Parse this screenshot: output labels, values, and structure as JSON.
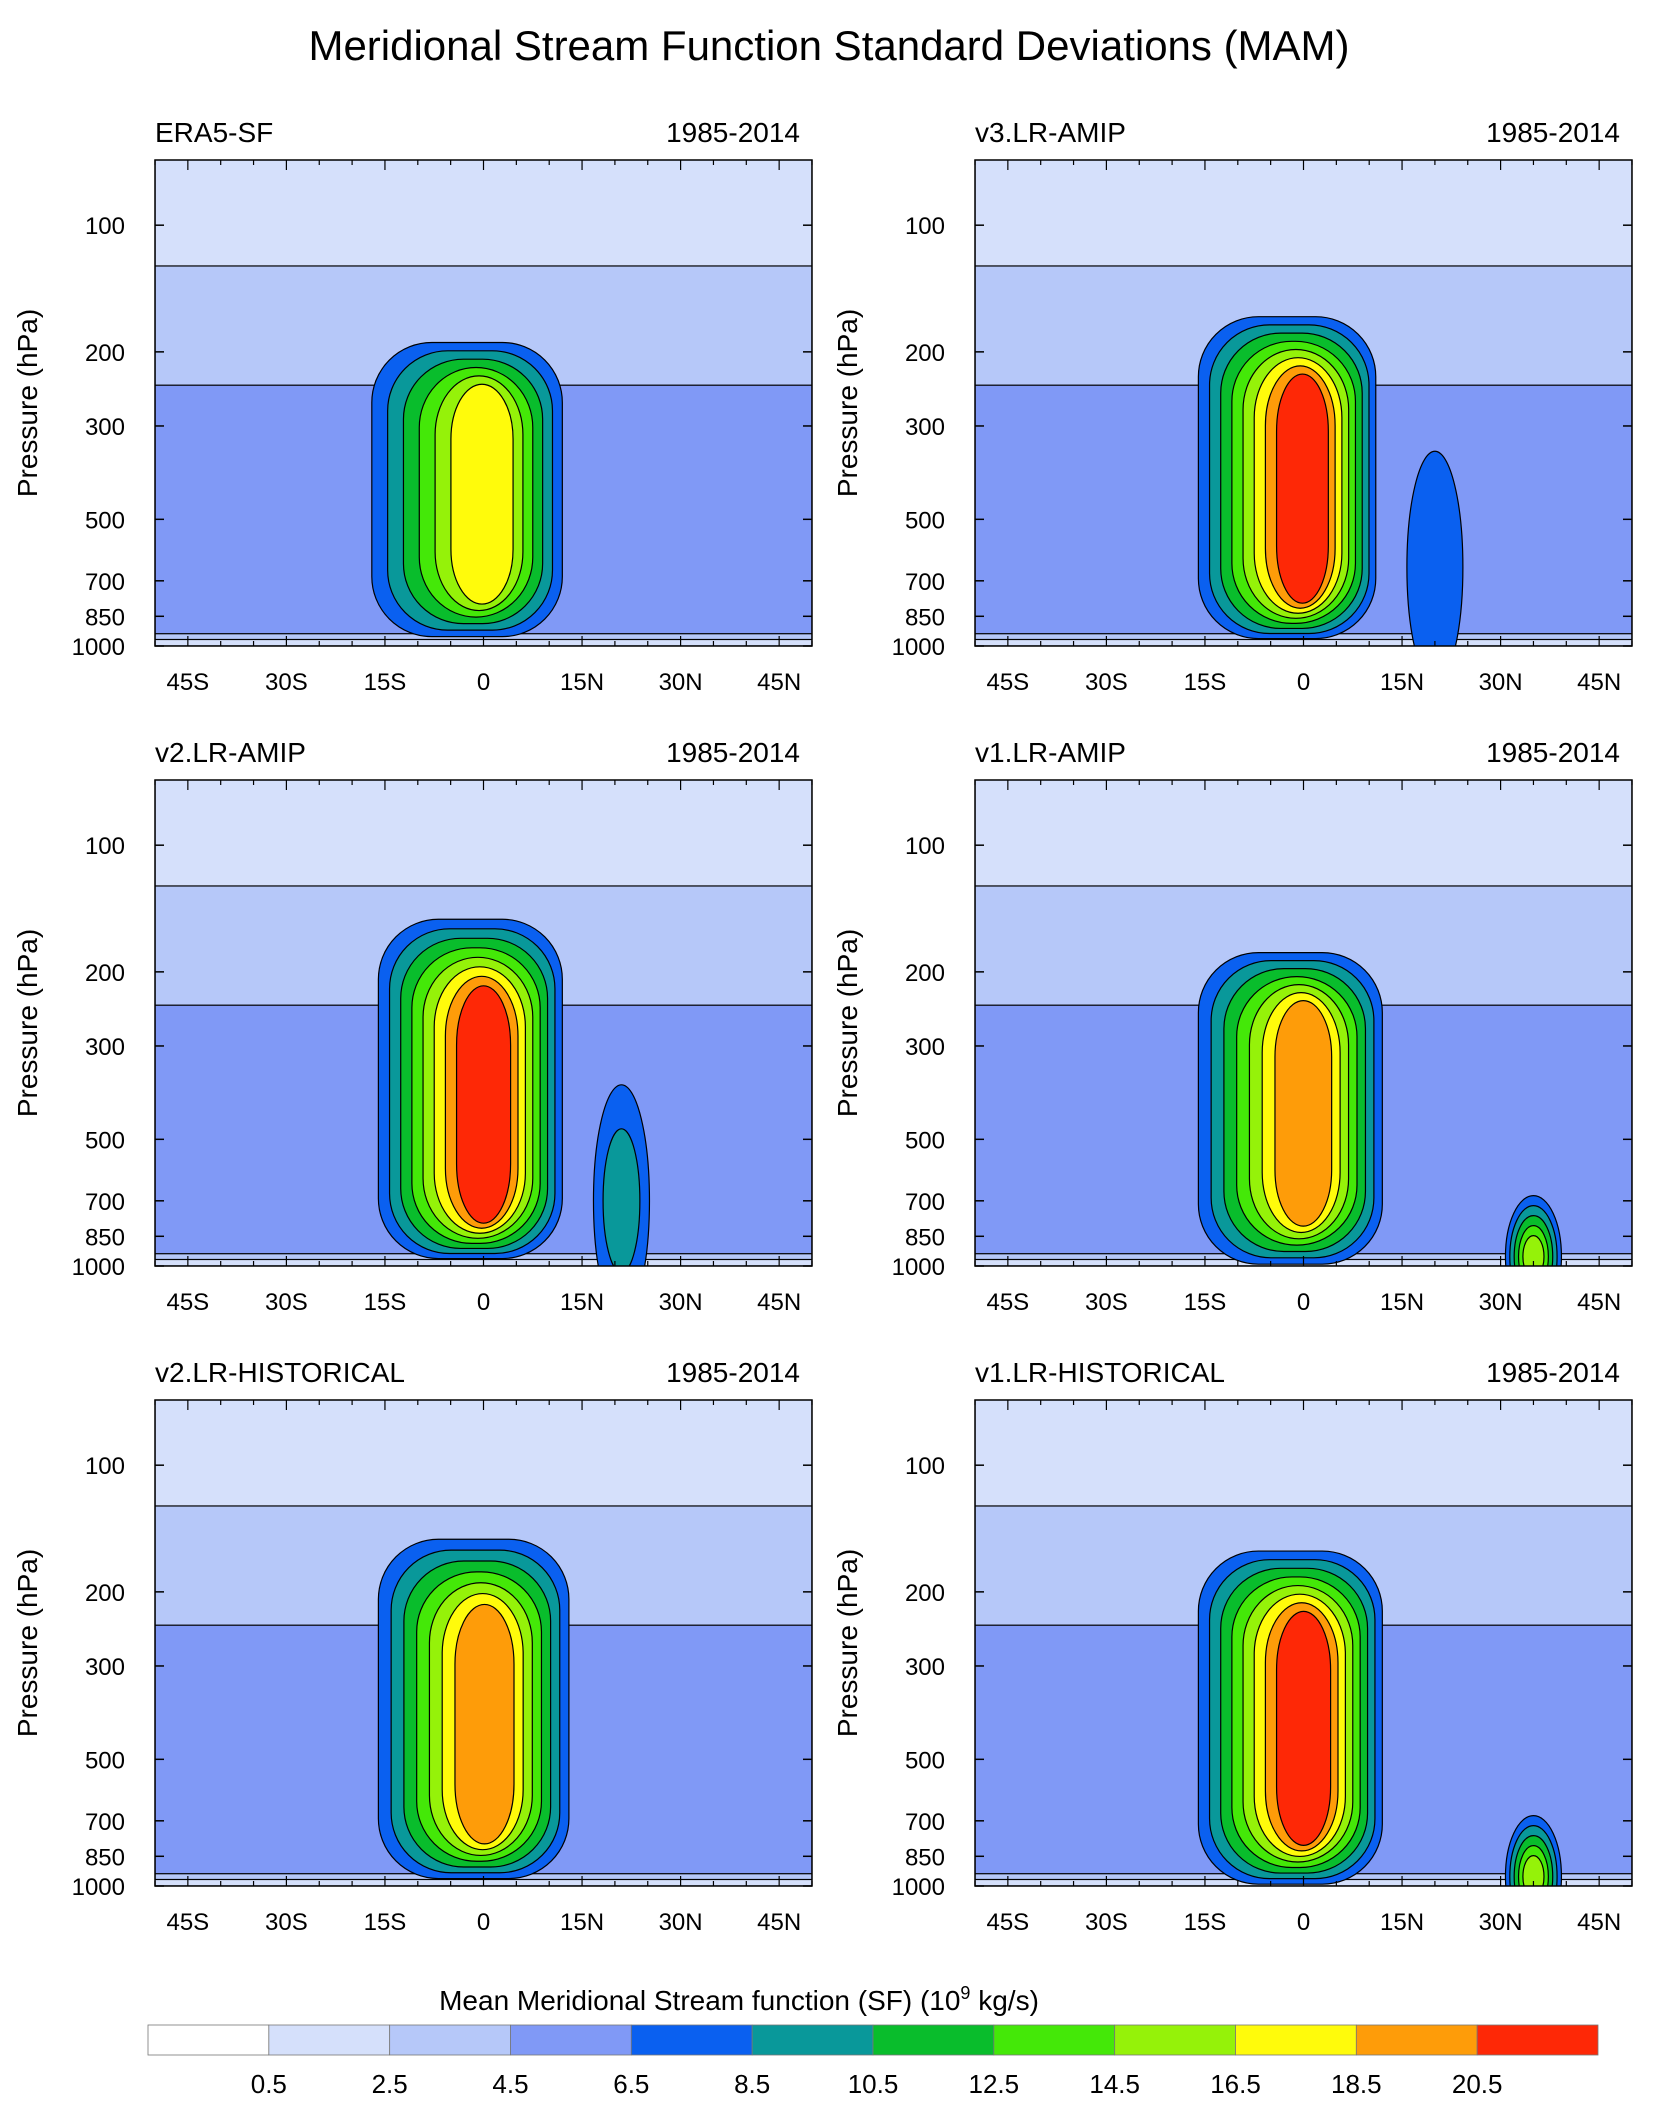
{
  "figure": {
    "title": "Meridional Stream Function Standard Deviations (MAM)"
  },
  "chart_data": [
    {
      "type": "contour",
      "panel": "ERA5-SF",
      "period": "1985-2014",
      "xlabel": "",
      "ylabel": "Pressure (hPa)",
      "xlim": [
        -50,
        50
      ],
      "ylim": [
        1000,
        70
      ],
      "xticks": [
        "45S",
        "30S",
        "15S",
        "0",
        "15N",
        "30N",
        "45N"
      ],
      "xtick_values": [
        -45,
        -30,
        -15,
        0,
        15,
        30,
        45
      ],
      "yticks": [
        100,
        200,
        300,
        500,
        700,
        850,
        1000
      ],
      "max_level": 16.5,
      "core": {
        "lat_range": [
          -17,
          12
        ],
        "top_hpa": 190,
        "bottom_hpa": 950
      },
      "features": []
    },
    {
      "type": "contour",
      "panel": "v3.LR-AMIP",
      "period": "1985-2014",
      "xlabel": "",
      "ylabel": "Pressure (hPa)",
      "xlim": [
        -50,
        50
      ],
      "ylim": [
        1000,
        70
      ],
      "xticks": [
        "45S",
        "30S",
        "15S",
        "0",
        "15N",
        "30N",
        "45N"
      ],
      "xtick_values": [
        -45,
        -30,
        -15,
        0,
        15,
        30,
        45
      ],
      "yticks": [
        100,
        200,
        300,
        500,
        700,
        850,
        1000
      ],
      "max_level": 20.5,
      "core": {
        "lat_range": [
          -16,
          11
        ],
        "top_hpa": 165,
        "bottom_hpa": 960
      },
      "features": [
        {
          "lat": 20,
          "pressure": 650,
          "level": 6.5
        }
      ]
    },
    {
      "type": "contour",
      "panel": "v2.LR-AMIP",
      "period": "1985-2014",
      "xlabel": "",
      "ylabel": "Pressure (hPa)",
      "xlim": [
        -50,
        50
      ],
      "ylim": [
        1000,
        70
      ],
      "xticks": [
        "45S",
        "30S",
        "15S",
        "0",
        "15N",
        "30N",
        "45N"
      ],
      "xtick_values": [
        -45,
        -30,
        -15,
        0,
        15,
        30,
        45
      ],
      "yticks": [
        100,
        200,
        300,
        500,
        700,
        850,
        1000
      ],
      "max_level": 20.5,
      "core": {
        "lat_range": [
          -16,
          12
        ],
        "top_hpa": 150,
        "bottom_hpa": 960
      },
      "features": [
        {
          "lat": 21,
          "pressure": 700,
          "level": 8.5
        }
      ]
    },
    {
      "type": "contour",
      "panel": "v1.LR-AMIP",
      "period": "1985-2014",
      "xlabel": "",
      "ylabel": "Pressure (hPa)",
      "xlim": [
        -50,
        50
      ],
      "ylim": [
        1000,
        70
      ],
      "xticks": [
        "45S",
        "30S",
        "15S",
        "0",
        "15N",
        "30N",
        "45N"
      ],
      "xtick_values": [
        -45,
        -30,
        -15,
        0,
        15,
        30,
        45
      ],
      "yticks": [
        100,
        200,
        300,
        500,
        700,
        850,
        1000
      ],
      "max_level": 18.5,
      "core": {
        "lat_range": [
          -16,
          12
        ],
        "top_hpa": 180,
        "bottom_hpa": 990
      },
      "features": [
        {
          "lat": 35,
          "pressure": 950,
          "level": 14.5
        }
      ]
    },
    {
      "type": "contour",
      "panel": "v2.LR-HISTORICAL",
      "period": "1985-2014",
      "xlabel": "",
      "ylabel": "Pressure (hPa)",
      "xlim": [
        -50,
        50
      ],
      "ylim": [
        1000,
        70
      ],
      "xticks": [
        "45S",
        "30S",
        "15S",
        "0",
        "15N",
        "30N",
        "45N"
      ],
      "xtick_values": [
        -45,
        -30,
        -15,
        0,
        15,
        30,
        45
      ],
      "yticks": [
        100,
        200,
        300,
        500,
        700,
        850,
        1000
      ],
      "max_level": 18.5,
      "core": {
        "lat_range": [
          -16,
          13
        ],
        "top_hpa": 150,
        "bottom_hpa": 960
      },
      "features": []
    },
    {
      "type": "contour",
      "panel": "v1.LR-HISTORICAL",
      "period": "1985-2014",
      "xlabel": "",
      "ylabel": "Pressure (hPa)",
      "xlim": [
        -50,
        50
      ],
      "ylim": [
        1000,
        70
      ],
      "xticks": [
        "45S",
        "30S",
        "15S",
        "0",
        "15N",
        "30N",
        "45N"
      ],
      "xtick_values": [
        -45,
        -30,
        -15,
        0,
        15,
        30,
        45
      ],
      "yticks": [
        100,
        200,
        300,
        500,
        700,
        850,
        1000
      ],
      "max_level": 20.5,
      "core": {
        "lat_range": [
          -16,
          12
        ],
        "top_hpa": 160,
        "bottom_hpa": 990
      },
      "features": [
        {
          "lat": 35,
          "pressure": 950,
          "level": 14.5
        }
      ]
    }
  ],
  "colorbar": {
    "title": "Mean Meridional Stream function (SF) (10",
    "title_sup": "9",
    "title_unit": " kg/s)",
    "boundaries": [
      "0.5",
      "2.5",
      "4.5",
      "6.5",
      "8.5",
      "10.5",
      "12.5",
      "14.5",
      "16.5",
      "18.5",
      "20.5"
    ],
    "colors": [
      "#ffffff",
      "#d5e0fb",
      "#b6c8f9",
      "#8099f6",
      "#0a60f0",
      "#09989a",
      "#09bd2c",
      "#44e808",
      "#95f209",
      "#fffb0b",
      "#fe9c09",
      "#fe2806"
    ]
  }
}
